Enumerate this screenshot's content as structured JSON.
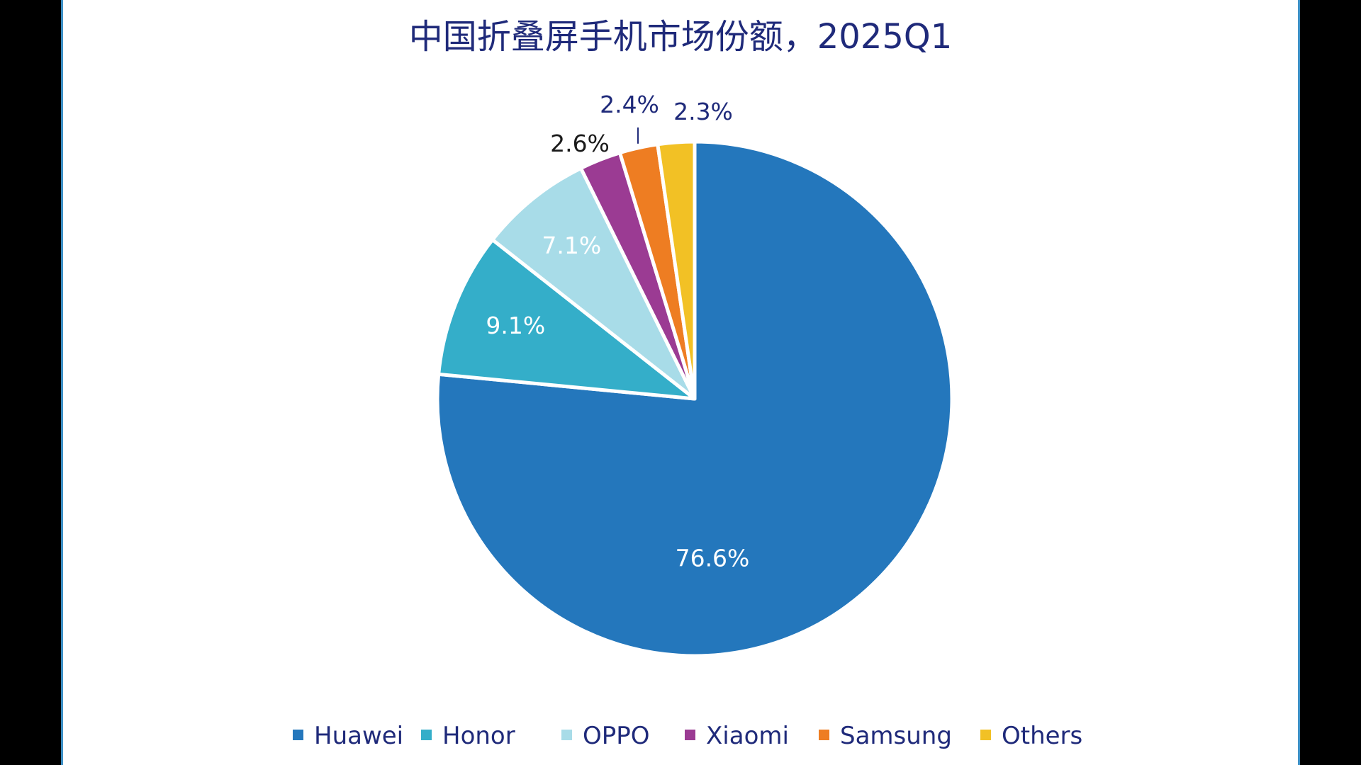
{
  "chart_data": {
    "type": "pie",
    "title": "中国折叠屏手机市场份额，2025Q1",
    "start_angle_deg": 0,
    "direction": "clockwise",
    "legend_position": "bottom",
    "slices": [
      {
        "name": "Huawei",
        "value": 76.6,
        "label": "76.6%",
        "color": "#2477bc",
        "label_color": "#ffffff",
        "label_placement": "inside"
      },
      {
        "name": "Honor",
        "value": 9.1,
        "label": "9.1%",
        "color": "#34aec9",
        "label_color": "#ffffff",
        "label_placement": "inside"
      },
      {
        "name": "OPPO",
        "value": 7.1,
        "label": "7.1%",
        "color": "#a8dce8",
        "label_color": "#ffffff",
        "label_placement": "inside"
      },
      {
        "name": "Xiaomi",
        "value": 2.6,
        "label": "2.6%",
        "color": "#9b3b93",
        "label_color": "#1a1a1a",
        "label_placement": "outside"
      },
      {
        "name": "Samsung",
        "value": 2.4,
        "label": "2.4%",
        "color": "#ee7d22",
        "label_color": "#1f2a7a",
        "label_placement": "outside-leader"
      },
      {
        "name": "Others",
        "value": 2.3,
        "label": "2.3%",
        "color": "#f2c125",
        "label_color": "#1f2a7a",
        "label_placement": "outside"
      }
    ]
  },
  "colors": {
    "background": "#000000",
    "panel": "#ffffff",
    "panel_border": "#3d8fc4",
    "title": "#1f2a7a"
  }
}
